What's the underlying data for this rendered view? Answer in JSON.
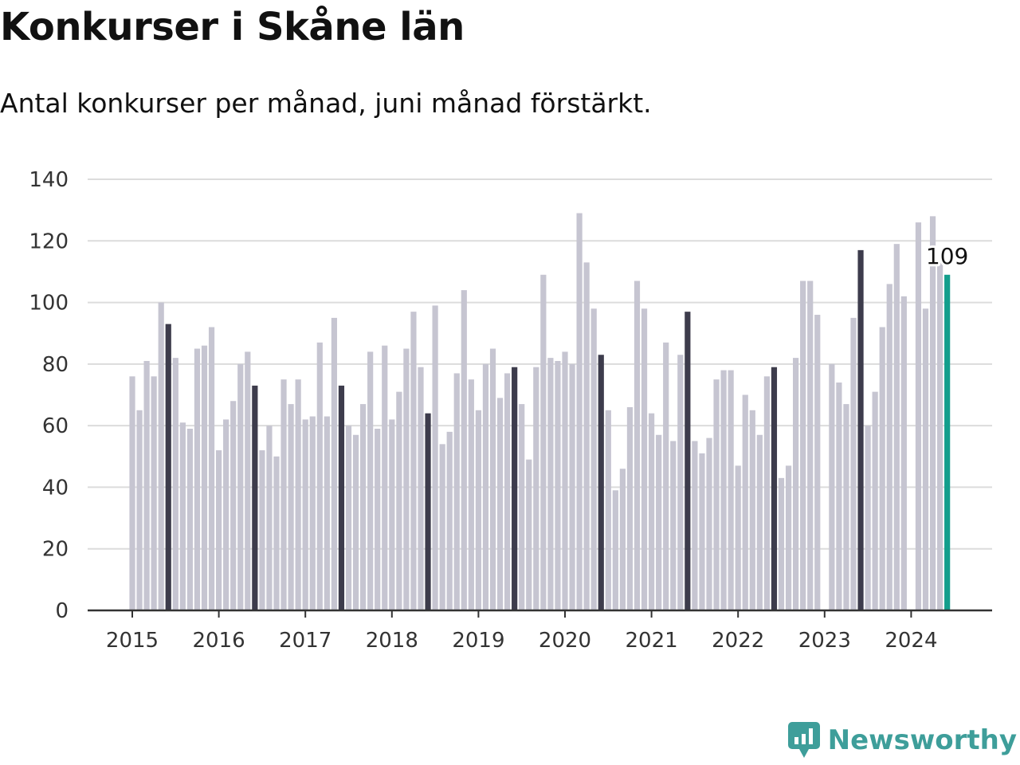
{
  "header": {
    "title": "Konkurser i Skåne län",
    "subtitle": "Antal konkurser per månad, juni månad förstärkt."
  },
  "brand": {
    "name": "Newsworthy",
    "icon": "newsworthy-logo-icon"
  },
  "colors": {
    "bar": "#c6c5d1",
    "june": "#3d3c4c",
    "latest": "#139e8c",
    "grid": "#dcdcdc",
    "axis": "#333333"
  },
  "chart_data": {
    "type": "bar",
    "title": "Konkurser i Skåne län",
    "subtitle": "Antal konkurser per månad, juni månad förstärkt.",
    "xlabel": "",
    "ylabel": "",
    "ylim": [
      0,
      140
    ],
    "yticks": [
      0,
      20,
      40,
      60,
      80,
      100,
      120,
      140
    ],
    "year_labels": [
      "2015",
      "2016",
      "2017",
      "2018",
      "2019",
      "2020",
      "2021",
      "2022",
      "2023",
      "2024"
    ],
    "start": "2015-01",
    "grid": true,
    "highlight": "June of each year shown darker; latest month (2024-06) highlighted",
    "latest_label": "109",
    "values": [
      76,
      65,
      81,
      76,
      100,
      93,
      82,
      61,
      59,
      85,
      86,
      92,
      52,
      62,
      68,
      80,
      84,
      73,
      52,
      60,
      50,
      75,
      67,
      75,
      62,
      63,
      87,
      63,
      95,
      73,
      60,
      57,
      67,
      84,
      59,
      86,
      62,
      71,
      85,
      97,
      79,
      64,
      99,
      54,
      58,
      77,
      104,
      75,
      65,
      80,
      85,
      69,
      77,
      79,
      67,
      49,
      79,
      109,
      82,
      81,
      84,
      80,
      129,
      113,
      98,
      83,
      65,
      39,
      46,
      66,
      107,
      98,
      64,
      57,
      87,
      55,
      83,
      97,
      55,
      51,
      56,
      75,
      78,
      78,
      47,
      70,
      65,
      57,
      76,
      79,
      43,
      47,
      82,
      107,
      107,
      96,
      null,
      80,
      74,
      67,
      95,
      117,
      60,
      71,
      92,
      106,
      119,
      102,
      null,
      126,
      98,
      128,
      113,
      109
    ]
  }
}
